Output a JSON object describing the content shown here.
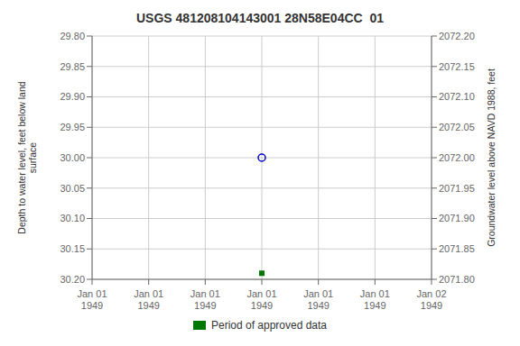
{
  "chart_data": {
    "type": "scatter",
    "title": "USGS 481208104143001 28N58E04CC  01",
    "y_label": "Depth to water level, feet below land\nsurface",
    "y2_label": "Groundwater level above NAVD 1988, feet",
    "categories": [
      "Jan 01\n1949",
      "Jan 01\n1949",
      "Jan 01\n1949",
      "Jan 01\n1949",
      "Jan 01\n1949",
      "Jan 01\n1949",
      "Jan 02\n1949"
    ],
    "series": [
      {
        "color": "#0000cc",
        "marker": "circle",
        "values": [
          null,
          null,
          null,
          30.0,
          null,
          null,
          null
        ]
      },
      {
        "name": "Period of approved data",
        "color": "#007700",
        "marker": "square",
        "values": [
          null,
          null,
          null,
          30.19,
          null,
          null,
          null
        ]
      }
    ],
    "ylim": [
      30.2,
      29.8
    ],
    "yticks": [
      {
        "value": 29.8,
        "label": "29.80"
      },
      {
        "value": 29.85,
        "label": "29.85"
      },
      {
        "value": 29.9,
        "label": "29.90"
      },
      {
        "value": 29.95,
        "label": "29.95"
      },
      {
        "value": 30.0,
        "label": "30.00"
      },
      {
        "value": 30.05,
        "label": "30.05"
      },
      {
        "value": 30.1,
        "label": "30.10"
      },
      {
        "value": 30.15,
        "label": "30.15"
      },
      {
        "value": 30.2,
        "label": "30.20"
      }
    ],
    "y2lim": [
      2071.8,
      2072.2
    ],
    "y2ticks": [
      {
        "value": 2072.2,
        "label": "2072.20"
      },
      {
        "value": 2072.15,
        "label": "2072.15"
      },
      {
        "value": 2072.1,
        "label": "2072.10"
      },
      {
        "value": 2072.05,
        "label": "2072.05"
      },
      {
        "value": 2072.0,
        "label": "2072.00"
      },
      {
        "value": 2071.95,
        "label": "2071.95"
      },
      {
        "value": 2071.9,
        "label": "2071.90"
      },
      {
        "value": 2071.85,
        "label": "2071.85"
      },
      {
        "value": 2071.8,
        "label": "2071.80"
      }
    ],
    "grid": true,
    "legend": "bottom"
  }
}
